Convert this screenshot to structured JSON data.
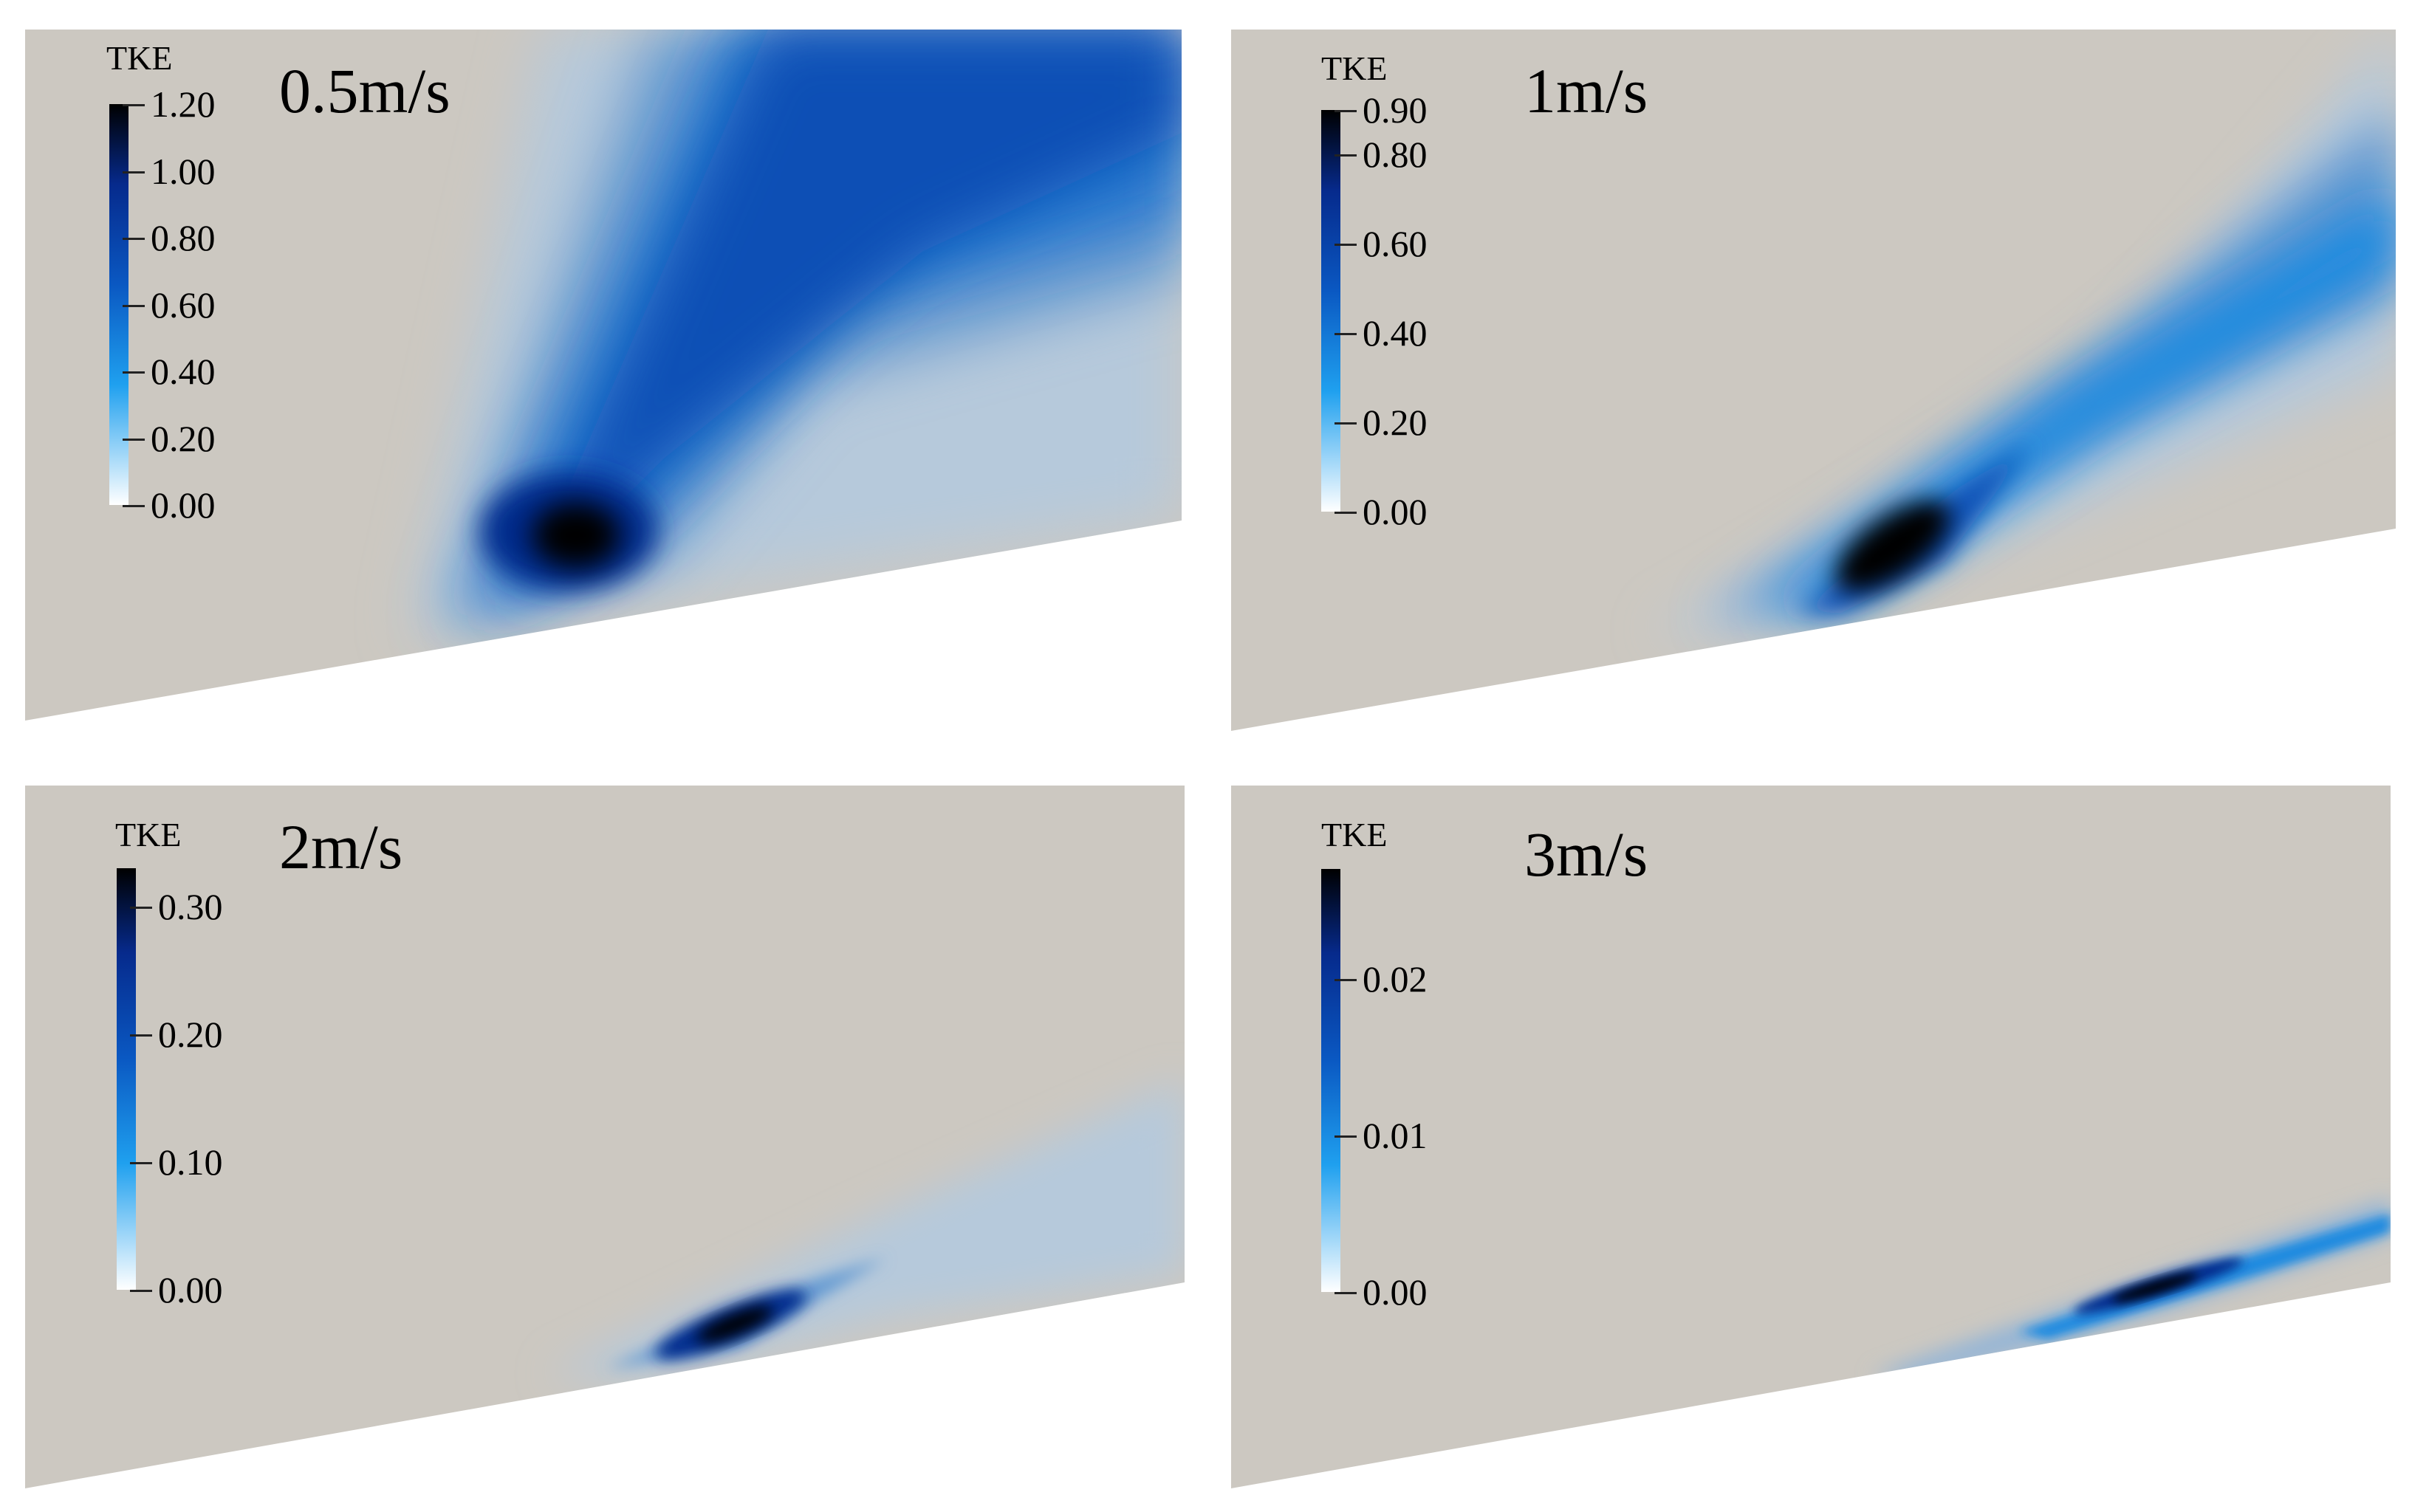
{
  "panels": [
    {
      "speed_label": "0.5m/s",
      "colorbar": {
        "title": "TKE",
        "ticks": [
          {
            "label": "1.20",
            "value": 1.2
          },
          {
            "label": "1.00",
            "value": 1.0
          },
          {
            "label": "0.80",
            "value": 0.8
          },
          {
            "label": "0.60",
            "value": 0.6
          },
          {
            "label": "0.40",
            "value": 0.4
          },
          {
            "label": "0.20",
            "value": 0.2
          },
          {
            "label": "0.00",
            "value": 0.0
          }
        ],
        "min": 0.0,
        "max": 1.2
      }
    },
    {
      "speed_label": "1m/s",
      "colorbar": {
        "title": "TKE",
        "ticks": [
          {
            "label": "0.90",
            "value": 0.9
          },
          {
            "label": "0.80",
            "value": 0.8
          },
          {
            "label": "0.60",
            "value": 0.6
          },
          {
            "label": "0.40",
            "value": 0.4
          },
          {
            "label": "0.20",
            "value": 0.2
          },
          {
            "label": "0.00",
            "value": 0.0
          }
        ],
        "min": 0.0,
        "max": 0.9
      }
    },
    {
      "speed_label": "2m/s",
      "colorbar": {
        "title": "TKE",
        "ticks": [
          {
            "label": "0.30",
            "value": 0.3
          },
          {
            "label": "0.20",
            "value": 0.2
          },
          {
            "label": "0.10",
            "value": 0.1
          },
          {
            "label": "0.00",
            "value": 0.0
          }
        ],
        "min": 0.0,
        "max": 0.33
      }
    },
    {
      "speed_label": "3m/s",
      "colorbar": {
        "title": "TKE",
        "ticks": [
          {
            "label": "0.02",
            "value": 0.02
          },
          {
            "label": "0.01",
            "value": 0.01
          },
          {
            "label": "0.00",
            "value": 0.0
          }
        ],
        "min": 0.0,
        "max": 0.027
      }
    }
  ],
  "colors": {
    "background_field": "#ccc8c1",
    "colormap": [
      "#ffffff",
      "#1fa0ef",
      "#0a58c2",
      "#062a8c",
      "#000000"
    ]
  }
}
